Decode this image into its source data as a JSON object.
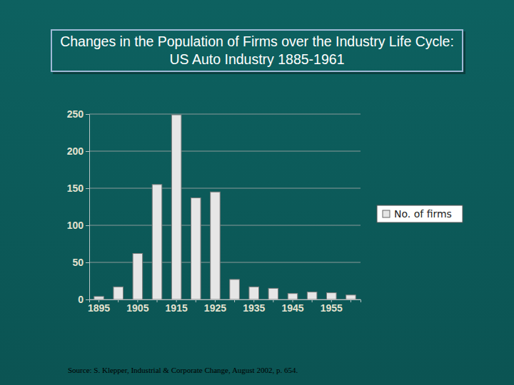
{
  "chart_data": {
    "type": "bar",
    "title": "Changes in the Population of Firms over the Industry Life Cycle: US Auto Industry 1885-1961",
    "categories": [
      "1895",
      null,
      "1905",
      null,
      "1915",
      null,
      "1925",
      null,
      "1935",
      null,
      "1945",
      null,
      "1955",
      null
    ],
    "series": [
      {
        "name": "No. of firms",
        "color": "#e6e6e6",
        "values": [
          4,
          17,
          62,
          155,
          249,
          137,
          145,
          27,
          17,
          15,
          8,
          10,
          9,
          6
        ]
      }
    ],
    "ylim": [
      0,
      250
    ],
    "yticks": [
      0,
      50,
      100,
      150,
      200,
      250
    ],
    "grid": true,
    "legend": "right",
    "annotations": [
      "Source: S. Klepper, Industrial & Corporate Change, August 2002, p. 654."
    ]
  }
}
